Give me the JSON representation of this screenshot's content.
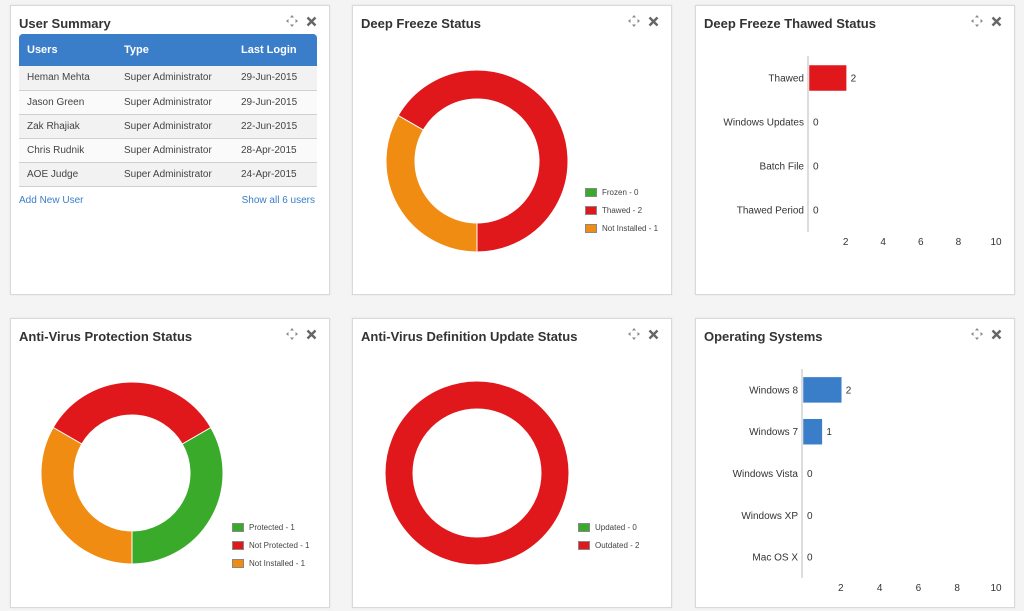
{
  "user_summary": {
    "title": "User Summary",
    "columns": [
      "Users",
      "Type",
      "Last Login"
    ],
    "rows": [
      [
        "Heman Mehta",
        "Super Administrator",
        "29-Jun-2015"
      ],
      [
        "Jason Green",
        "Super Administrator",
        "29-Jun-2015"
      ],
      [
        "Zak Rhajiak",
        "Super Administrator",
        "22-Jun-2015"
      ],
      [
        "Chris Rudnik",
        "Super Administrator",
        "28-Apr-2015"
      ],
      [
        "AOE Judge",
        "Super Administrator",
        "24-Apr-2015"
      ]
    ],
    "add_link": "Add New User",
    "show_all_link": "Show all 6 users"
  },
  "deep_freeze_status": {
    "title": "Deep Freeze Status",
    "chart_data": {
      "type": "pie",
      "donut": true,
      "labels": [
        "Frozen",
        "Thawed",
        "Not Installed"
      ],
      "values": [
        0,
        2,
        1
      ],
      "legend": [
        "Frozen - 0",
        "Thawed - 2",
        "Not Installed - 1"
      ],
      "colors": [
        "#3aaa2a",
        "#e0171b",
        "#f08c12"
      ],
      "legend_position": "right"
    }
  },
  "deep_freeze_thawed": {
    "title": "Deep Freeze Thawed Status",
    "chart_data": {
      "type": "bar",
      "orientation": "horizontal",
      "categories": [
        "Thawed",
        "Windows Updates",
        "Batch File",
        "Thawed Period"
      ],
      "values": [
        2,
        0,
        0,
        0
      ],
      "value_labels": [
        "2",
        "0",
        "0",
        "0"
      ],
      "xticks": [
        "2",
        "4",
        "6",
        "8",
        "10"
      ],
      "xlim": [
        0,
        10
      ],
      "color": "#e0171b"
    }
  },
  "antivirus_protection": {
    "title": "Anti-Virus Protection Status",
    "chart_data": {
      "type": "pie",
      "donut": true,
      "labels": [
        "Protected",
        "Not Protected",
        "Not Installed"
      ],
      "values": [
        1,
        1,
        1
      ],
      "legend": [
        "Protected - 1",
        "Not Protected - 1",
        "Not Installed - 1"
      ],
      "colors": [
        "#3aaa2a",
        "#e0171b",
        "#f08c12"
      ],
      "legend_position": "right"
    }
  },
  "antivirus_definition": {
    "title": "Anti-Virus Definition Update Status",
    "chart_data": {
      "type": "pie",
      "donut": true,
      "labels": [
        "Updated",
        "Outdated"
      ],
      "values": [
        0,
        2
      ],
      "legend": [
        "Updated - 0",
        "Outdated - 2"
      ],
      "colors": [
        "#3aaa2a",
        "#e0171b"
      ],
      "legend_position": "right"
    }
  },
  "operating_systems": {
    "title": "Operating Systems",
    "chart_data": {
      "type": "bar",
      "orientation": "horizontal",
      "categories": [
        "Windows 8",
        "Windows 7",
        "Windows Vista",
        "Windows XP",
        "Mac OS X"
      ],
      "values": [
        2,
        1,
        0,
        0,
        0
      ],
      "value_labels": [
        "2",
        "1",
        "0",
        "0",
        "0"
      ],
      "xticks": [
        "2",
        "4",
        "6",
        "8",
        "10"
      ],
      "xlim": [
        0,
        10
      ],
      "color": "#3a7dc9"
    }
  },
  "icons": {
    "move": "move-icon",
    "close": "close-icon"
  }
}
